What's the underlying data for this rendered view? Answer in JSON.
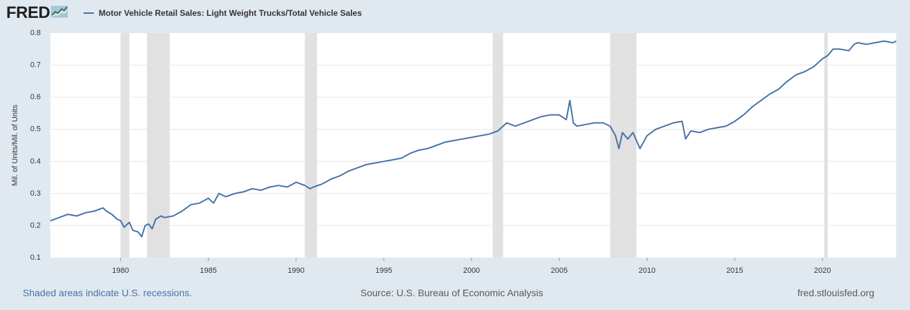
{
  "header": {
    "logo_text": "FRED",
    "legend_label": "Motor Vehicle Retail Sales: Light Weight Trucks/Total Vehicle Sales"
  },
  "footer": {
    "recession_note": "Shaded areas indicate U.S. recessions.",
    "source": "Source: U.S. Bureau of Economic Analysis",
    "site": "fred.stlouisfed.org"
  },
  "colors": {
    "line": "#4572a7",
    "recession": "#e1e1e1",
    "background": "#e1e9f0",
    "plot": "#ffffff",
    "grid": "#e6e6e6"
  },
  "chart_data": {
    "type": "line",
    "title": "",
    "xlabel": "",
    "ylabel": "Mil. of Units/Mil. of Units",
    "xlim": [
      1976.0,
      2024.2
    ],
    "ylim": [
      0.1,
      0.8
    ],
    "yticks": [
      "0.1",
      "0.2",
      "0.3",
      "0.4",
      "0.5",
      "0.6",
      "0.7",
      "0.8"
    ],
    "xticks": [
      "1980",
      "1985",
      "1990",
      "1995",
      "2000",
      "2005",
      "2010",
      "2015",
      "2020"
    ],
    "recessions": [
      [
        1980.0,
        1980.5
      ],
      [
        1981.5,
        1982.8
      ],
      [
        1990.5,
        1991.2
      ],
      [
        2001.2,
        2001.8
      ],
      [
        2007.9,
        2009.4
      ],
      [
        2020.1,
        2020.3
      ]
    ],
    "series": [
      {
        "name": "Motor Vehicle Retail Sales: Light Weight Trucks/Total Vehicle Sales",
        "x": [
          1976.0,
          1976.5,
          1977.0,
          1977.5,
          1978.0,
          1978.5,
          1979.0,
          1979.2,
          1979.5,
          1979.8,
          1980.0,
          1980.2,
          1980.5,
          1980.7,
          1981.0,
          1981.2,
          1981.4,
          1981.6,
          1981.8,
          1982.0,
          1982.3,
          1982.5,
          1983.0,
          1983.5,
          1984.0,
          1984.5,
          1985.0,
          1985.3,
          1985.6,
          1986.0,
          1986.5,
          1987.0,
          1987.5,
          1988.0,
          1988.5,
          1989.0,
          1989.5,
          1990.0,
          1990.5,
          1990.8,
          1991.0,
          1991.5,
          1992.0,
          1992.5,
          1993.0,
          1993.5,
          1994.0,
          1994.5,
          1995.0,
          1995.5,
          1996.0,
          1996.5,
          1997.0,
          1997.5,
          1998.0,
          1998.5,
          1999.0,
          1999.5,
          2000.0,
          2000.5,
          2001.0,
          2001.5,
          2001.8,
          2002.0,
          2002.5,
          2003.0,
          2003.5,
          2004.0,
          2004.5,
          2005.0,
          2005.4,
          2005.6,
          2005.8,
          2006.0,
          2006.5,
          2007.0,
          2007.5,
          2007.9,
          2008.2,
          2008.4,
          2008.6,
          2008.9,
          2009.2,
          2009.6,
          2010.0,
          2010.5,
          2011.0,
          2011.5,
          2012.0,
          2012.2,
          2012.5,
          2013.0,
          2013.5,
          2014.0,
          2014.5,
          2015.0,
          2015.5,
          2016.0,
          2016.5,
          2017.0,
          2017.5,
          2018.0,
          2018.5,
          2019.0,
          2019.5,
          2020.0,
          2020.3,
          2020.6,
          2021.0,
          2021.5,
          2021.8,
          2022.0,
          2022.5,
          2023.0,
          2023.5,
          2024.0,
          2024.2
        ],
        "values": [
          0.215,
          0.225,
          0.235,
          0.23,
          0.24,
          0.245,
          0.255,
          0.245,
          0.235,
          0.22,
          0.215,
          0.195,
          0.21,
          0.185,
          0.18,
          0.165,
          0.2,
          0.205,
          0.19,
          0.22,
          0.23,
          0.225,
          0.23,
          0.245,
          0.265,
          0.27,
          0.285,
          0.27,
          0.3,
          0.29,
          0.3,
          0.305,
          0.315,
          0.31,
          0.32,
          0.325,
          0.32,
          0.335,
          0.325,
          0.315,
          0.32,
          0.33,
          0.345,
          0.355,
          0.37,
          0.38,
          0.39,
          0.395,
          0.4,
          0.405,
          0.41,
          0.425,
          0.435,
          0.44,
          0.45,
          0.46,
          0.465,
          0.47,
          0.475,
          0.48,
          0.485,
          0.495,
          0.51,
          0.52,
          0.51,
          0.52,
          0.53,
          0.54,
          0.545,
          0.545,
          0.53,
          0.59,
          0.52,
          0.51,
          0.515,
          0.52,
          0.52,
          0.51,
          0.48,
          0.44,
          0.49,
          0.47,
          0.49,
          0.44,
          0.48,
          0.5,
          0.51,
          0.52,
          0.525,
          0.47,
          0.495,
          0.49,
          0.5,
          0.505,
          0.51,
          0.525,
          0.545,
          0.57,
          0.59,
          0.61,
          0.625,
          0.65,
          0.67,
          0.68,
          0.695,
          0.72,
          0.73,
          0.75,
          0.75,
          0.745,
          0.765,
          0.77,
          0.765,
          0.77,
          0.775,
          0.77,
          0.775
        ]
      }
    ]
  }
}
